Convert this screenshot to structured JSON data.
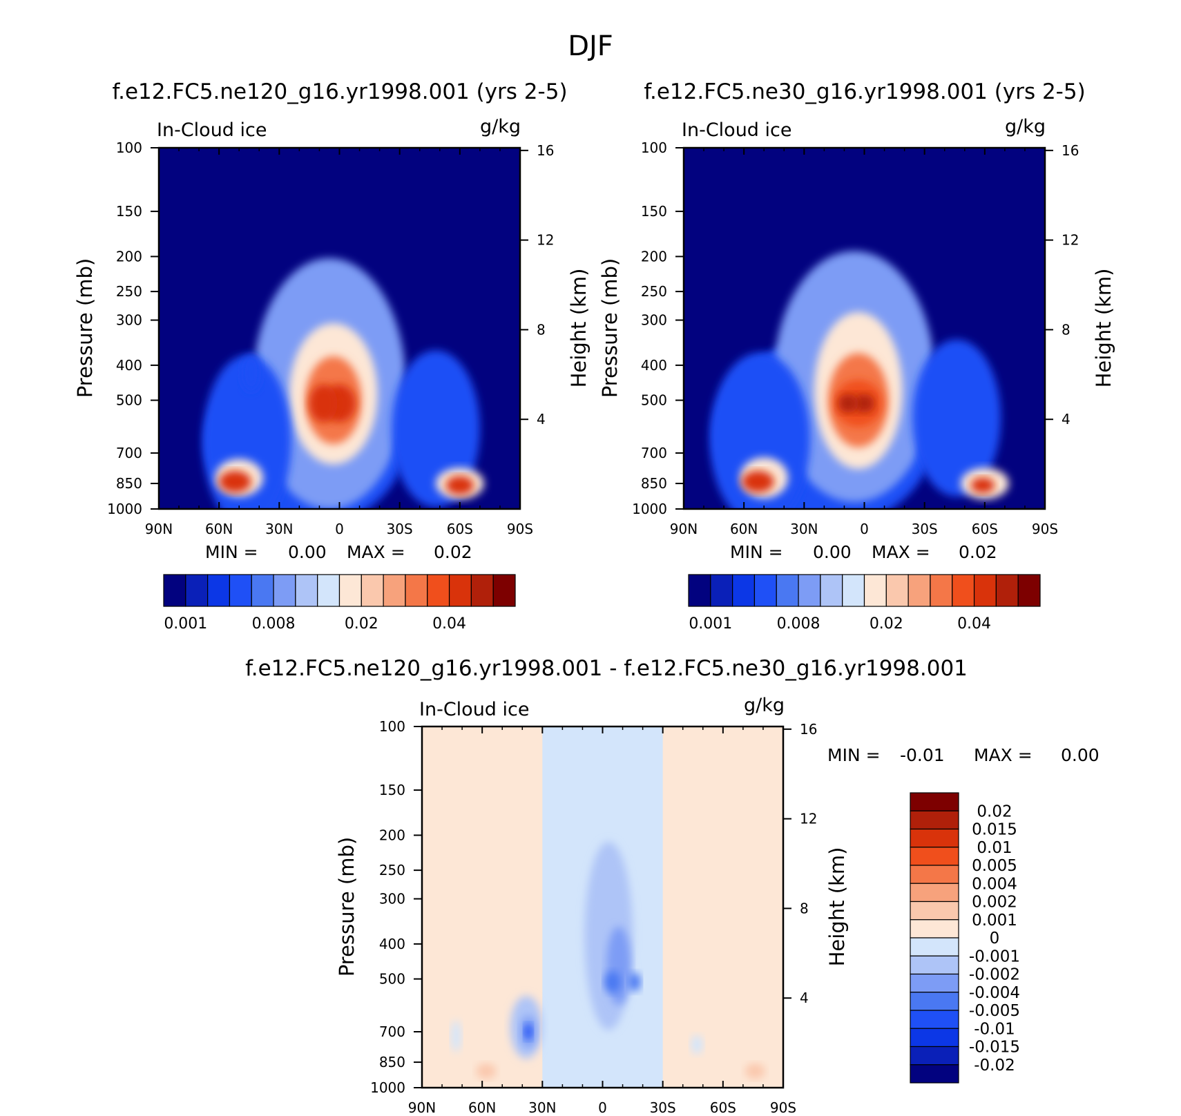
{
  "figure_title": "DJF",
  "chart_data": [
    {
      "type": "heatmap",
      "panel": "top-left",
      "title": "f.e12.FC5.ne120_g16.yr1998.001 (yrs 2-5)",
      "variable_label": "In-Cloud ice",
      "units": "g/kg",
      "ylabel": "Pressure (mb)",
      "ylabel_right": "Height (km)",
      "x_ticks": [
        "90N",
        "60N",
        "30N",
        "0",
        "30S",
        "60S",
        "90S"
      ],
      "y_ticks": [
        "100",
        "150",
        "200",
        "250",
        "300",
        "400",
        "500",
        "700",
        "850",
        "1000"
      ],
      "right_ticks": [
        "16",
        "12",
        "8",
        "4"
      ],
      "min_label": "MIN =",
      "min_value": "0.00",
      "max_label": "MAX =",
      "max_value": "0.02",
      "colorbar_ticks": [
        "0.001",
        "0.008",
        "0.02",
        "0.04"
      ],
      "colorbar_colors": [
        "#02027f",
        "#0a20b8",
        "#0c37e6",
        "#1f50f6",
        "#4a78f2",
        "#7d9cf5",
        "#aec4f7",
        "#d3e5fb",
        "#fde7d6",
        "#fac8ad",
        "#f7a27c",
        "#f47748",
        "#f04f1c",
        "#d9330b",
        "#b0200a",
        "#7d0000"
      ],
      "blobs": [
        {
          "lat": 17,
          "p": 650,
          "fill": 0.2,
          "sx": 50,
          "sy": 0.55
        },
        {
          "lat": 5,
          "p": 450,
          "fill": 0.35,
          "sx": 38,
          "sy": 0.8
        },
        {
          "lat": 3,
          "p": 480,
          "fill": 0.55,
          "sx": 22,
          "sy": 0.45
        },
        {
          "lat": 3,
          "p": 500,
          "fill": 0.7,
          "sx": 14,
          "sy": 0.28
        },
        {
          "lat": 0,
          "p": 510,
          "fill": 0.85,
          "sx": 8,
          "sy": 0.12
        },
        {
          "lat": 8,
          "p": 510,
          "fill": 0.85,
          "sx": 7,
          "sy": 0.12
        },
        {
          "lat": 46,
          "p": 650,
          "fill": 0.18,
          "sx": 22,
          "sy": 0.55
        },
        {
          "lat": 44,
          "p": 420,
          "fill": 0.22,
          "sx": 5,
          "sy": 0.12
        },
        {
          "lat": 50,
          "p": 820,
          "fill": 0.55,
          "sx": 12,
          "sy": 0.12
        },
        {
          "lat": 52,
          "p": 840,
          "fill": 0.85,
          "sx": 8,
          "sy": 0.07
        },
        {
          "lat": -48,
          "p": 600,
          "fill": 0.18,
          "sx": 22,
          "sy": 0.5
        },
        {
          "lat": -60,
          "p": 850,
          "fill": 0.55,
          "sx": 12,
          "sy": 0.1
        },
        {
          "lat": -60,
          "p": 860,
          "fill": 0.85,
          "sx": 7,
          "sy": 0.06
        }
      ]
    },
    {
      "type": "heatmap",
      "panel": "top-right",
      "title": "f.e12.FC5.ne30_g16.yr1998.001 (yrs 2-5)",
      "variable_label": "In-Cloud ice",
      "units": "g/kg",
      "ylabel": "Pressure (mb)",
      "ylabel_right": "Height (km)",
      "x_ticks": [
        "90N",
        "60N",
        "30N",
        "0",
        "30S",
        "60S",
        "90S"
      ],
      "y_ticks": [
        "100",
        "150",
        "200",
        "250",
        "300",
        "400",
        "500",
        "700",
        "850",
        "1000"
      ],
      "right_ticks": [
        "16",
        "12",
        "8",
        "4"
      ],
      "min_label": "MIN =",
      "min_value": "0.00",
      "max_label": "MAX =",
      "max_value": "0.02",
      "colorbar_ticks": [
        "0.001",
        "0.008",
        "0.02",
        "0.04"
      ],
      "colorbar_colors": [
        "#02027f",
        "#0a20b8",
        "#0c37e6",
        "#1f50f6",
        "#4a78f2",
        "#7d9cf5",
        "#aec4f7",
        "#d3e5fb",
        "#fde7d6",
        "#fac8ad",
        "#f7a27c",
        "#f47748",
        "#f04f1c",
        "#d9330b",
        "#b0200a",
        "#7d0000"
      ],
      "blobs": [
        {
          "lat": 20,
          "p": 620,
          "fill": 0.2,
          "sx": 55,
          "sy": 0.6
        },
        {
          "lat": 5,
          "p": 430,
          "fill": 0.35,
          "sx": 40,
          "sy": 0.8
        },
        {
          "lat": 3,
          "p": 470,
          "fill": 0.55,
          "sx": 22,
          "sy": 0.5
        },
        {
          "lat": 3,
          "p": 500,
          "fill": 0.7,
          "sx": 15,
          "sy": 0.3
        },
        {
          "lat": 3,
          "p": 510,
          "fill": 0.82,
          "sx": 12,
          "sy": 0.15
        },
        {
          "lat": 0,
          "p": 510,
          "fill": 0.9,
          "sx": 5,
          "sy": 0.06
        },
        {
          "lat": 8,
          "p": 510,
          "fill": 0.9,
          "sx": 5,
          "sy": 0.06
        },
        {
          "lat": 52,
          "p": 640,
          "fill": 0.18,
          "sx": 25,
          "sy": 0.55
        },
        {
          "lat": 50,
          "p": 820,
          "fill": 0.55,
          "sx": 12,
          "sy": 0.13
        },
        {
          "lat": 53,
          "p": 840,
          "fill": 0.85,
          "sx": 8,
          "sy": 0.07
        },
        {
          "lat": -46,
          "p": 560,
          "fill": 0.18,
          "sx": 22,
          "sy": 0.5
        },
        {
          "lat": -60,
          "p": 850,
          "fill": 0.55,
          "sx": 12,
          "sy": 0.1
        },
        {
          "lat": -59,
          "p": 860,
          "fill": 0.85,
          "sx": 6,
          "sy": 0.05
        }
      ]
    },
    {
      "type": "heatmap",
      "panel": "bottom",
      "title": "f.e12.FC5.ne120_g16.yr1998.001 - f.e12.FC5.ne30_g16.yr1998.001",
      "variable_label": "In-Cloud ice",
      "units": "g/kg",
      "ylabel": "Pressure (mb)",
      "ylabel_right": "Height (km)",
      "x_ticks": [
        "90N",
        "60N",
        "30N",
        "0",
        "30S",
        "60S",
        "90S"
      ],
      "y_ticks": [
        "100",
        "150",
        "200",
        "250",
        "300",
        "400",
        "500",
        "700",
        "850",
        "1000"
      ],
      "right_ticks": [
        "16",
        "12",
        "8",
        "4"
      ],
      "min_label": "MIN =",
      "min_value": "-0.01",
      "max_label": "MAX =",
      "max_value": "0.00",
      "colorbar_ticks": [
        "0.02",
        "0.015",
        "0.01",
        "0.005",
        "0.004",
        "0.002",
        "0.001",
        "0",
        "-0.001",
        "-0.002",
        "-0.004",
        "-0.005",
        "-0.01",
        "-0.015",
        "-0.02"
      ],
      "colorbar_colors": [
        "#7d0000",
        "#b0200a",
        "#d9330b",
        "#f04f1c",
        "#f47748",
        "#f7a27c",
        "#fac8ad",
        "#fde7d6",
        "#d3e5fb",
        "#aec4f7",
        "#7d9cf5",
        "#4a78f2",
        "#1f50f6",
        "#0c37e6",
        "#0a20b8",
        "#02027f"
      ],
      "background_value": 0.0005,
      "band": {
        "lat_min": -30,
        "lat_max": 30,
        "value": -0.0005
      },
      "blobs": [
        {
          "lat": -3,
          "p": 380,
          "fill": -0.0015,
          "sx": 12,
          "sy": 0.6
        },
        {
          "lat": -8,
          "p": 460,
          "fill": -0.003,
          "sx": 6,
          "sy": 0.25
        },
        {
          "lat": -5,
          "p": 510,
          "fill": -0.0045,
          "sx": 4,
          "sy": 0.07
        },
        {
          "lat": -16,
          "p": 510,
          "fill": -0.0045,
          "sx": 3,
          "sy": 0.06
        },
        {
          "lat": 38,
          "p": 680,
          "fill": -0.0015,
          "sx": 8,
          "sy": 0.2
        },
        {
          "lat": 37,
          "p": 700,
          "fill": -0.003,
          "sx": 4,
          "sy": 0.1
        },
        {
          "lat": 37,
          "p": 700,
          "fill": -0.006,
          "sx": 2,
          "sy": 0.05
        },
        {
          "lat": 73,
          "p": 720,
          "fill": -0.0007,
          "sx": 2.5,
          "sy": 0.1
        },
        {
          "lat": 58,
          "p": 900,
          "fill": 0.0015,
          "sx": 5,
          "sy": 0.05
        },
        {
          "lat": -76,
          "p": 900,
          "fill": 0.0015,
          "sx": 5,
          "sy": 0.05
        },
        {
          "lat": -47,
          "p": 760,
          "fill": -0.0007,
          "sx": 3,
          "sy": 0.06
        },
        {
          "lat": 22,
          "p": 300,
          "fill": -0.0007,
          "sx": 2,
          "sy": 0.1
        }
      ]
    }
  ]
}
